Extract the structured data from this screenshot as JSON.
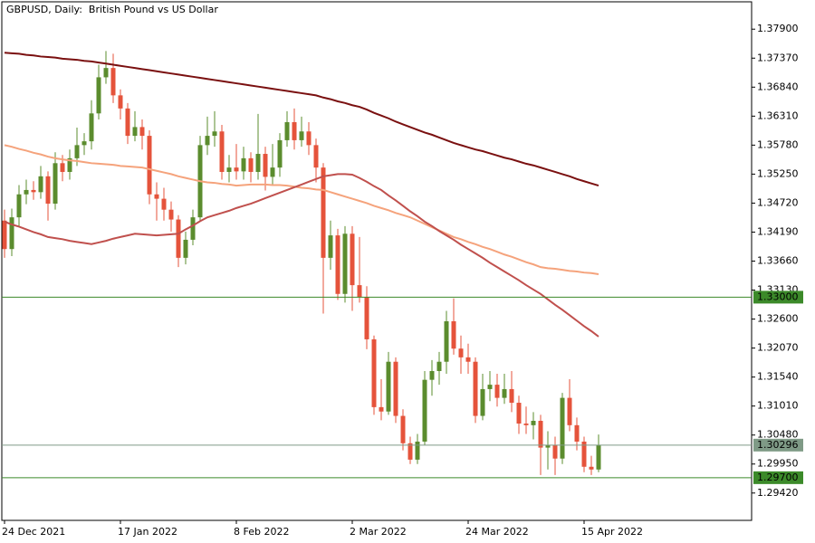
{
  "chart_data": {
    "type": "candlestick",
    "title": "GBPUSD, Daily:  British Pound vs US Dollar",
    "categories": [
      "24 Dec 2021",
      null,
      null,
      null,
      null,
      null,
      null,
      null,
      null,
      null,
      null,
      null,
      null,
      null,
      null,
      null,
      "17 Jan 2022",
      null,
      null,
      null,
      null,
      null,
      null,
      null,
      null,
      null,
      null,
      null,
      null,
      null,
      null,
      null,
      "8 Feb 2022",
      null,
      null,
      null,
      null,
      null,
      null,
      null,
      null,
      null,
      null,
      null,
      null,
      null,
      null,
      null,
      "2 Mar 2022",
      null,
      null,
      null,
      null,
      null,
      null,
      null,
      null,
      null,
      null,
      null,
      null,
      null,
      null,
      null,
      "24 Mar 2022",
      null,
      null,
      null,
      null,
      null,
      null,
      null,
      null,
      null,
      null,
      null,
      null,
      null,
      null,
      null,
      "15 Apr 2022",
      null,
      null
    ],
    "open": [
      1.344,
      1.3388,
      1.3446,
      1.3488,
      1.3496,
      1.3492,
      1.3521,
      1.3471,
      1.3545,
      1.3529,
      1.3554,
      1.3578,
      1.3585,
      1.3636,
      1.3702,
      1.3719,
      1.3669,
      1.3645,
      1.3595,
      1.3611,
      1.3595,
      1.3488,
      1.348,
      1.346,
      1.3442,
      1.3372,
      1.3405,
      1.3446,
      1.3578,
      1.3595,
      1.3603,
      1.3529,
      1.3537,
      1.353,
      1.3554,
      1.3529,
      1.3562,
      1.352,
      1.3537,
      1.3587,
      1.362,
      1.3587,
      1.3603,
      1.3578,
      1.3537,
      1.3372,
      1.3413,
      1.3306,
      1.3416,
      1.3322,
      1.33,
      1.3223,
      1.3099,
      1.3091,
      1.3182,
      1.3083,
      1.3033,
      1.3003,
      1.3036,
      1.3149,
      1.3165,
      1.3182,
      1.3256,
      1.3206,
      1.319,
      1.3182,
      1.3083,
      1.3132,
      1.314,
      1.3116,
      1.3132,
      1.3107,
      1.3069,
      1.3066,
      1.3074,
      1.3025,
      1.303,
      1.3005,
      1.3116,
      1.3066,
      1.3036,
      1.299,
      1.2985
    ],
    "high": [
      1.346,
      1.3462,
      1.3505,
      1.3515,
      1.3512,
      1.354,
      1.353,
      1.3565,
      1.356,
      1.357,
      1.361,
      1.36,
      1.366,
      1.3725,
      1.375,
      1.3745,
      1.368,
      1.3655,
      1.364,
      1.3625,
      1.3605,
      1.351,
      1.35,
      1.3475,
      1.345,
      1.342,
      1.346,
      1.3595,
      1.363,
      1.364,
      1.3615,
      1.356,
      1.358,
      1.3575,
      1.3565,
      1.3635,
      1.3575,
      1.358,
      1.36,
      1.364,
      1.3645,
      1.363,
      1.362,
      1.359,
      1.3545,
      1.344,
      1.3425,
      1.343,
      1.343,
      1.341,
      1.332,
      1.323,
      1.315,
      1.32,
      1.319,
      1.3095,
      1.3045,
      1.305,
      1.3165,
      1.3185,
      1.32,
      1.3275,
      1.3298,
      1.323,
      1.3215,
      1.319,
      1.316,
      1.3165,
      1.316,
      1.316,
      1.3165,
      1.312,
      1.31,
      1.309,
      1.3085,
      1.3055,
      1.3045,
      1.3125,
      1.315,
      1.308,
      1.3045,
      1.301,
      1.3049
    ],
    "low": [
      1.3372,
      1.3375,
      1.343,
      1.347,
      1.3478,
      1.348,
      1.344,
      1.346,
      1.3512,
      1.3515,
      1.354,
      1.356,
      1.357,
      1.3625,
      1.369,
      1.3655,
      1.3625,
      1.358,
      1.3585,
      1.357,
      1.347,
      1.344,
      1.344,
      1.342,
      1.3355,
      1.336,
      1.3395,
      1.344,
      1.356,
      1.3575,
      1.3515,
      1.351,
      1.3515,
      1.3515,
      1.351,
      1.3515,
      1.3495,
      1.3505,
      1.352,
      1.3575,
      1.357,
      1.3575,
      1.356,
      1.351,
      1.327,
      1.335,
      1.3295,
      1.329,
      1.3275,
      1.329,
      1.3205,
      1.3085,
      1.3075,
      1.3085,
      1.307,
      1.302,
      1.2995,
      1.2995,
      1.303,
      1.312,
      1.314,
      1.316,
      1.3195,
      1.316,
      1.316,
      1.307,
      1.3075,
      1.311,
      1.31,
      1.3105,
      1.309,
      1.305,
      1.305,
      1.304,
      1.2975,
      1.2985,
      1.2975,
      1.2995,
      1.3055,
      1.302,
      1.298,
      1.2975,
      1.298
    ],
    "close": [
      1.3388,
      1.3446,
      1.3488,
      1.3496,
      1.3492,
      1.3521,
      1.3471,
      1.3545,
      1.3529,
      1.3554,
      1.3578,
      1.3585,
      1.3636,
      1.3702,
      1.3719,
      1.3669,
      1.3645,
      1.3595,
      1.3611,
      1.3595,
      1.3488,
      1.348,
      1.346,
      1.3442,
      1.3372,
      1.3405,
      1.3446,
      1.3578,
      1.3595,
      1.3603,
      1.3529,
      1.3537,
      1.353,
      1.3554,
      1.3529,
      1.3562,
      1.352,
      1.3537,
      1.3587,
      1.362,
      1.3587,
      1.3603,
      1.3578,
      1.3537,
      1.3372,
      1.3413,
      1.3306,
      1.3416,
      1.3322,
      1.33,
      1.3223,
      1.3099,
      1.3091,
      1.3182,
      1.3083,
      1.3033,
      1.3003,
      1.3036,
      1.3149,
      1.3165,
      1.3182,
      1.3256,
      1.3206,
      1.319,
      1.3182,
      1.3083,
      1.3132,
      1.314,
      1.3116,
      1.3132,
      1.3107,
      1.3069,
      1.3066,
      1.3074,
      1.3025,
      1.303,
      1.3005,
      1.3116,
      1.3066,
      1.3036,
      1.299,
      1.2985,
      1.30296
    ],
    "up_color": "#5b8c2e",
    "down_color": "#e5533b",
    "series": [
      {
        "color": "#7a1010",
        "values": [
          1.3747,
          1.3746,
          1.3745,
          1.3743,
          1.3742,
          1.374,
          1.3739,
          1.3738,
          1.3736,
          1.3735,
          1.3734,
          1.3732,
          1.3731,
          1.3729,
          1.3727,
          1.3725,
          1.3723,
          1.3721,
          1.3719,
          1.3717,
          1.3715,
          1.3713,
          1.3711,
          1.3709,
          1.3707,
          1.3705,
          1.3703,
          1.3701,
          1.3699,
          1.3697,
          1.3695,
          1.3693,
          1.3691,
          1.3689,
          1.3687,
          1.3685,
          1.3683,
          1.3681,
          1.3679,
          1.3677,
          1.3675,
          1.3673,
          1.3671,
          1.3669,
          1.3665,
          1.3662,
          1.3658,
          1.3655,
          1.3651,
          1.3648,
          1.3643,
          1.3637,
          1.3632,
          1.3627,
          1.3621,
          1.3616,
          1.3611,
          1.3606,
          1.3601,
          1.3597,
          1.3592,
          1.3587,
          1.3582,
          1.3578,
          1.3574,
          1.357,
          1.3567,
          1.3563,
          1.3559,
          1.3555,
          1.3552,
          1.3548,
          1.3544,
          1.3541,
          1.3537,
          1.3533,
          1.3529,
          1.3525,
          1.3521,
          1.3516,
          1.3512,
          1.3508,
          1.3504
        ]
      },
      {
        "color": "#f5a37c",
        "values": [
          1.3578,
          1.3575,
          1.3571,
          1.3568,
          1.3564,
          1.3561,
          1.3557,
          1.3554,
          1.3552,
          1.355,
          1.3549,
          1.3547,
          1.3545,
          1.3544,
          1.3543,
          1.3542,
          1.354,
          1.3539,
          1.3538,
          1.3537,
          1.3534,
          1.3531,
          1.3528,
          1.3525,
          1.3521,
          1.3518,
          1.3515,
          1.3512,
          1.351,
          1.3509,
          1.3507,
          1.3506,
          1.3504,
          1.3505,
          1.3506,
          1.3506,
          1.3506,
          1.3505,
          1.3505,
          1.3504,
          1.3502,
          1.35,
          1.3499,
          1.3497,
          1.3496,
          1.3492,
          1.3488,
          1.3484,
          1.348,
          1.3476,
          1.3472,
          1.3467,
          1.3463,
          1.3459,
          1.3454,
          1.345,
          1.3446,
          1.344,
          1.3434,
          1.3428,
          1.3422,
          1.3416,
          1.341,
          1.3406,
          1.3401,
          1.3397,
          1.3392,
          1.3388,
          1.3383,
          1.3378,
          1.3374,
          1.3369,
          1.3364,
          1.336,
          1.3355,
          1.3353,
          1.3352,
          1.335,
          1.3348,
          1.3347,
          1.3345,
          1.3344,
          1.3342
        ]
      },
      {
        "color": "#c0504d",
        "values": [
          1.3438,
          1.3433,
          1.3429,
          1.3424,
          1.3419,
          1.3415,
          1.341,
          1.3408,
          1.3406,
          1.3403,
          1.3401,
          1.3399,
          1.3397,
          1.34,
          1.3403,
          1.3407,
          1.341,
          1.3413,
          1.3416,
          1.3415,
          1.3414,
          1.3413,
          1.3414,
          1.3415,
          1.3416,
          1.3424,
          1.3431,
          1.3439,
          1.3446,
          1.345,
          1.3454,
          1.3458,
          1.3463,
          1.3467,
          1.3471,
          1.3476,
          1.3481,
          1.3486,
          1.3491,
          1.3496,
          1.3501,
          1.3506,
          1.3511,
          1.3516,
          1.3521,
          1.3523,
          1.3525,
          1.3525,
          1.3524,
          1.3518,
          1.3511,
          1.3503,
          1.3496,
          1.3486,
          1.3477,
          1.3467,
          1.3457,
          1.3448,
          1.3438,
          1.343,
          1.3421,
          1.3413,
          1.3405,
          1.3396,
          1.3388,
          1.338,
          1.3372,
          1.3363,
          1.3355,
          1.3347,
          1.3339,
          1.3331,
          1.3322,
          1.3314,
          1.3306,
          1.3296,
          1.3286,
          1.3277,
          1.3267,
          1.3257,
          1.3247,
          1.3238,
          1.3228
        ]
      }
    ],
    "hlines": [
      {
        "value": 1.33,
        "label": "1.33000",
        "color": "#3c8a2a"
      },
      {
        "value": 1.30296,
        "label": "1.30296",
        "color": "#7f9a86"
      },
      {
        "value": 1.297,
        "label": "1.29700",
        "color": "#3c8a2a"
      }
    ],
    "ylim": [
      1.2892,
      1.384
    ],
    "yticks": [
      {
        "value": 1.379,
        "label": "1.37900"
      },
      {
        "value": 1.3737,
        "label": "1.37370"
      },
      {
        "value": 1.3684,
        "label": "1.36840"
      },
      {
        "value": 1.3631,
        "label": "1.36310"
      },
      {
        "value": 1.3578,
        "label": "1.35780"
      },
      {
        "value": 1.3525,
        "label": "1.35250"
      },
      {
        "value": 1.3472,
        "label": "1.34720"
      },
      {
        "value": 1.3419,
        "label": "1.34190"
      },
      {
        "value": 1.3366,
        "label": "1.33660"
      },
      {
        "value": 1.3313,
        "label": "1.33130"
      },
      {
        "value": 1.326,
        "label": "1.32600"
      },
      {
        "value": 1.3207,
        "label": "1.32070"
      },
      {
        "value": 1.3154,
        "label": "1.31540"
      },
      {
        "value": 1.3101,
        "label": "1.31010"
      },
      {
        "value": 1.3048,
        "label": "1.30480"
      },
      {
        "value": 1.2995,
        "label": "1.29950"
      },
      {
        "value": 1.2942,
        "label": "1.29420"
      }
    ],
    "grid": false
  }
}
